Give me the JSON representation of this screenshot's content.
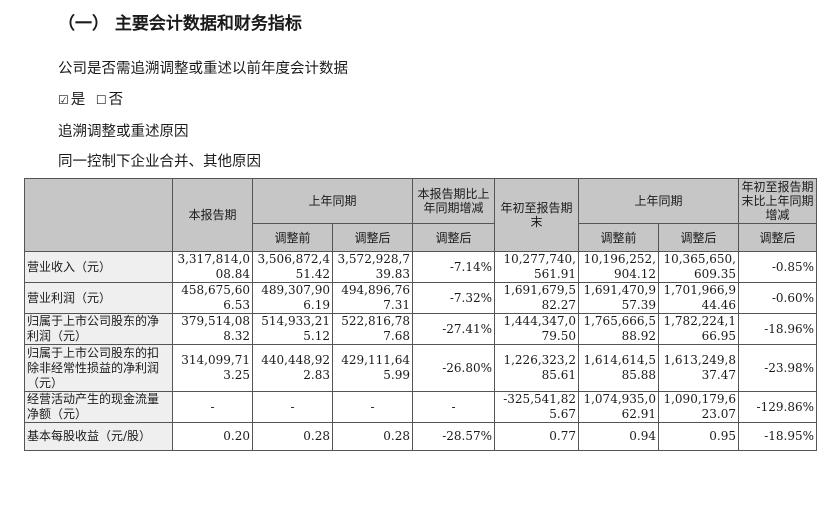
{
  "heading": "（一）  主要会计数据和财务指标",
  "line1": "公司是否需追溯调整或重述以前年度会计数据",
  "choice": {
    "yes_box": "☑",
    "yes_label": "是",
    "no_box": "☐",
    "no_label": "否"
  },
  "line3": "追溯调整或重述原因",
  "line4": "同一控制下企业合并、其他原因",
  "table": {
    "h_current": "本报告期",
    "h_prev": "上年同期",
    "h_change": "本报告期比上年同期增减",
    "h_ytd": "年初至报告期末",
    "h_prev2": "上年同期",
    "h_ytd_change": "年初至报告期末比上年同期增减",
    "sub_before": "调整前",
    "sub_after": "调整后",
    "sub_change_after": "调整后",
    "sub_before2": "调整前",
    "sub_after2": "调整后",
    "sub_ytd_change_after": "调整后",
    "rows": [
      [
        "营业收入（元）",
        "3,317,814,008.84",
        "3,506,872,451.42",
        "3,572,928,739.83",
        "-7.14%",
        "10,277,740,561.91",
        "10,196,252,904.12",
        "10,365,650,609.35",
        "-0.85%"
      ],
      [
        "营业利润（元）",
        "458,675,606.53",
        "489,307,906.19",
        "494,896,767.31",
        "-7.32%",
        "1,691,679,582.27",
        "1,691,470,957.39",
        "1,701,966,944.46",
        "-0.60%"
      ],
      [
        "归属于上市公司股东的净利润（元）",
        "379,514,088.32",
        "514,933,215.12",
        "522,816,787.68",
        "-27.41%",
        "1,444,347,079.50",
        "1,765,666,588.92",
        "1,782,224,166.95",
        "-18.96%"
      ],
      [
        "归属于上市公司股东的扣除非经常性损益的净利润（元）",
        "314,099,713.25",
        "440,448,922.83",
        "429,111,645.99",
        "-26.80%",
        "1,226,323,285.61",
        "1,614,614,585.88",
        "1,613,249,837.47",
        "-23.98%"
      ],
      [
        "经营活动产生的现金流量净额（元）",
        "-",
        "-",
        "-",
        "-",
        "-325,541,825.67",
        "1,074,935,062.91",
        "1,090,179,623.07",
        "-129.86%"
      ],
      [
        "基本每股收益（元/股）",
        "0.20",
        "0.28",
        "0.28",
        "-28.57%",
        "0.77",
        "0.94",
        "0.95",
        "-18.95%"
      ]
    ]
  }
}
